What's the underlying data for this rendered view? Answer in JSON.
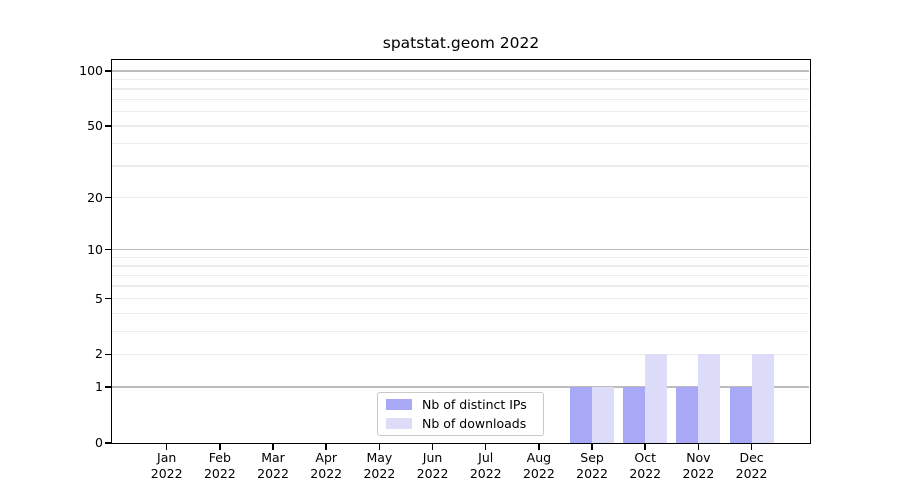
{
  "chart_data": {
    "type": "bar",
    "title": "spatstat.geom 2022",
    "categories": [
      "Jan",
      "Feb",
      "Mar",
      "Apr",
      "May",
      "Jun",
      "Jul",
      "Aug",
      "Sep",
      "Oct",
      "Nov",
      "Dec"
    ],
    "year_label": "2022",
    "series": [
      {
        "name": "Nb of distinct IPs",
        "color": "#a8a8f7",
        "values": [
          0,
          0,
          0,
          0,
          0,
          0,
          0,
          0,
          1,
          1,
          1,
          1
        ]
      },
      {
        "name": "Nb of downloads",
        "color": "#dcdcf9",
        "values": [
          0,
          0,
          0,
          0,
          0,
          0,
          0,
          0,
          1,
          2,
          2,
          2
        ]
      }
    ],
    "y_scale": "log1p",
    "y_ticks": [
      0,
      1,
      2,
      5,
      10,
      20,
      50,
      100
    ],
    "ylim": [
      0,
      115
    ],
    "grid": {
      "major_values": [
        1,
        10,
        100
      ],
      "minor_values": [
        2,
        3,
        4,
        5,
        6,
        7,
        8,
        9,
        20,
        30,
        40,
        50,
        60,
        70,
        80,
        90
      ],
      "major_color": "#bcbcbc",
      "minor_color": "#ececec"
    },
    "legend_position": "bottom-center",
    "axis_color": "#000000",
    "background_color": "#ffffff"
  }
}
